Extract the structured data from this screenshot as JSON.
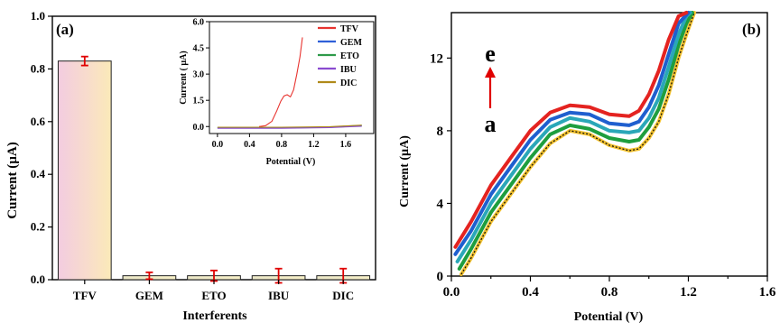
{
  "chart_data": [
    {
      "panel": "(a)",
      "type": "bar",
      "xlabel": "Interferents",
      "ylabel": "Current  (µA)",
      "ylim": [
        0,
        1.0
      ],
      "yticks": [
        "0.0",
        "0.2",
        "0.4",
        "0.6",
        "0.8",
        "1.0"
      ],
      "categories": [
        "TFV",
        "GEM",
        "ETO",
        "IBU",
        "DIC"
      ],
      "values": [
        0.83,
        0.015,
        0.015,
        0.015,
        0.015
      ],
      "errors": [
        0.017,
        0.013,
        0.02,
        0.027,
        0.027
      ],
      "error_color": "#e00000",
      "inset": {
        "type": "line",
        "xlabel": "Potential (V)",
        "ylabel": "Current ( µA)",
        "xlim": [
          -0.1,
          1.95
        ],
        "ylim": [
          -0.4,
          6.0
        ],
        "xticks": [
          "0.0",
          "0.4",
          "0.8",
          "1.2",
          "1.6"
        ],
        "yticks": [
          "0.0",
          "1.5",
          "3.0",
          "4.5",
          "6.0"
        ],
        "legend_position": "top-right",
        "series": [
          {
            "name": "TFV",
            "color": "#e8332f",
            "x": [
              0.52,
              0.6,
              0.68,
              0.74,
              0.79,
              0.83,
              0.87,
              0.91,
              0.95,
              0.99,
              1.03,
              1.06
            ],
            "y": [
              0.0,
              0.05,
              0.3,
              0.9,
              1.45,
              1.75,
              1.82,
              1.7,
              2.1,
              3.0,
              4.0,
              5.1
            ]
          },
          {
            "name": "GEM",
            "color": "#2f5fd8",
            "x": [
              0.0,
              0.8,
              1.4,
              1.8
            ],
            "y": [
              -0.08,
              -0.08,
              -0.05,
              0.05
            ]
          },
          {
            "name": "ETO",
            "color": "#2e9a4a",
            "x": [
              0.0,
              0.8,
              1.4,
              1.8
            ],
            "y": [
              -0.06,
              -0.06,
              -0.03,
              0.07
            ]
          },
          {
            "name": "IBU",
            "color": "#8a4bd0",
            "x": [
              0.0,
              0.8,
              1.4,
              1.8
            ],
            "y": [
              -0.1,
              -0.1,
              -0.06,
              0.02
            ]
          },
          {
            "name": "DIC",
            "color": "#b08a1a",
            "x": [
              0.0,
              0.8,
              1.4,
              1.8
            ],
            "y": [
              -0.04,
              -0.04,
              -0.01,
              0.08
            ]
          }
        ]
      }
    },
    {
      "panel": "(b)",
      "type": "line",
      "xlabel": "Potential (V)",
      "ylabel": "Current (µA)",
      "xlim": [
        0.0,
        1.6
      ],
      "ylim": [
        0,
        14.5
      ],
      "xticks": [
        "0.0",
        "0.2",
        "0.4",
        "0.6",
        "0.8",
        "1.0",
        "1.2",
        "1.4",
        "1.6"
      ],
      "yticks": [
        "0",
        "4",
        "8",
        "12"
      ],
      "arrow_top_label": "e",
      "arrow_bottom_label": "a",
      "arrow_color": "#e00000",
      "series": [
        {
          "color": "#f2c12e",
          "x": [
            0.05,
            0.1,
            0.2,
            0.3,
            0.4,
            0.5,
            0.6,
            0.7,
            0.8,
            0.9,
            0.95,
            1.0,
            1.05,
            1.1,
            1.15,
            1.19,
            1.23
          ],
          "y": [
            0.1,
            1.0,
            3.0,
            4.5,
            6.0,
            7.3,
            8.0,
            7.8,
            7.2,
            6.9,
            7.0,
            7.6,
            8.5,
            10.0,
            12.0,
            13.3,
            14.5
          ]
        },
        {
          "color": "#1e9e3e",
          "x": [
            0.04,
            0.1,
            0.2,
            0.3,
            0.4,
            0.5,
            0.6,
            0.7,
            0.8,
            0.9,
            0.95,
            1.0,
            1.05,
            1.1,
            1.15,
            1.19,
            1.22
          ],
          "y": [
            0.4,
            1.5,
            3.5,
            5.0,
            6.5,
            7.8,
            8.3,
            8.1,
            7.6,
            7.4,
            7.5,
            8.2,
            9.2,
            10.8,
            12.7,
            13.9,
            14.5
          ]
        },
        {
          "color": "#2aa7b8",
          "x": [
            0.03,
            0.1,
            0.2,
            0.3,
            0.4,
            0.5,
            0.6,
            0.7,
            0.8,
            0.9,
            0.95,
            1.0,
            1.05,
            1.1,
            1.15,
            1.19,
            1.21
          ],
          "y": [
            0.8,
            2.0,
            4.0,
            5.5,
            7.0,
            8.2,
            8.7,
            8.5,
            8.0,
            7.9,
            8.0,
            8.7,
            9.8,
            11.5,
            13.3,
            14.3,
            14.5
          ]
        },
        {
          "color": "#1f5fcf",
          "x": [
            0.02,
            0.1,
            0.2,
            0.3,
            0.4,
            0.5,
            0.6,
            0.7,
            0.8,
            0.9,
            0.95,
            1.0,
            1.05,
            1.1,
            1.15,
            1.2
          ],
          "y": [
            1.2,
            2.5,
            4.5,
            6.0,
            7.5,
            8.6,
            9.0,
            8.9,
            8.4,
            8.3,
            8.5,
            9.3,
            10.5,
            12.2,
            13.9,
            14.5
          ]
        },
        {
          "color": "#e42320",
          "x": [
            0.02,
            0.1,
            0.2,
            0.3,
            0.4,
            0.5,
            0.6,
            0.7,
            0.8,
            0.9,
            0.95,
            1.0,
            1.05,
            1.1,
            1.15,
            1.19
          ],
          "y": [
            1.6,
            3.0,
            5.0,
            6.5,
            8.0,
            9.0,
            9.4,
            9.3,
            8.9,
            8.8,
            9.1,
            10.0,
            11.3,
            13.0,
            14.3,
            14.5
          ]
        }
      ]
    }
  ]
}
